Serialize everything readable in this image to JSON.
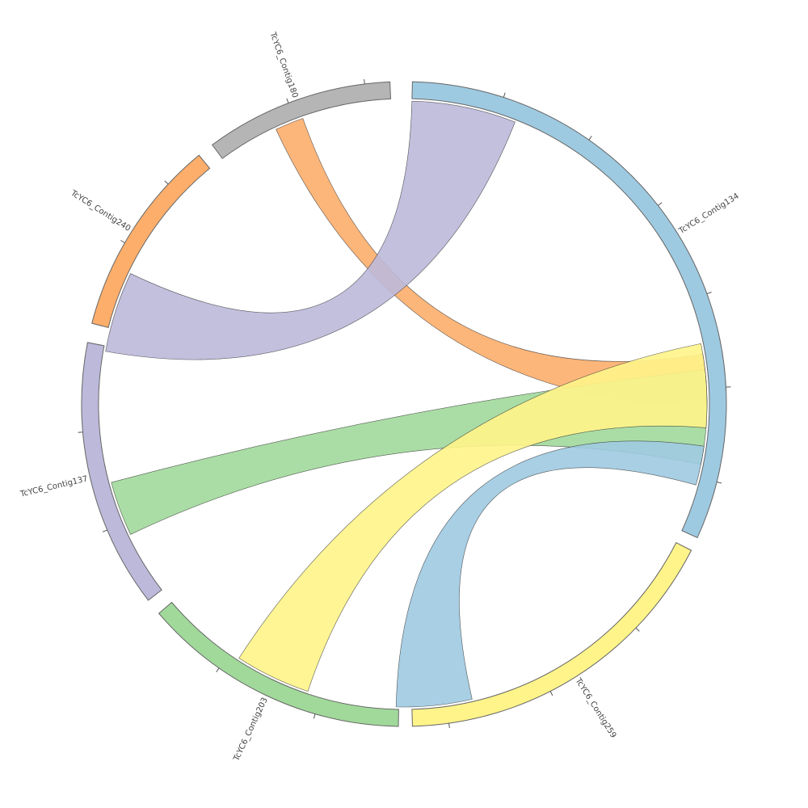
{
  "diagram": {
    "type": "chord",
    "segments": [
      {
        "id": "contig134",
        "label": "TcYC6_Contig134",
        "color": "#9ecae1"
      },
      {
        "id": "contig259",
        "label": "TcYC6_Contig259",
        "color": "#fff48a"
      },
      {
        "id": "contig203",
        "label": "TcYC6_Contig203",
        "color": "#a1d99b"
      },
      {
        "id": "contig137",
        "label": "TcYC6_Contig137",
        "color": "#bcb9da"
      },
      {
        "id": "contig240",
        "label": "TcYC6_Contig240",
        "color": "#fdae6b"
      },
      {
        "id": "contig180",
        "label": "TcYC6_Contig180",
        "color": "#b5b5b5"
      }
    ],
    "links": [
      {
        "from": "contig180",
        "to": "contig134",
        "color": "#fdae6b"
      },
      {
        "from": "contig240",
        "to": "contig134",
        "color": "#bcb9da"
      },
      {
        "from": "contig137",
        "to": "contig134",
        "color": "#a1d99b"
      },
      {
        "from": "contig203",
        "to": "contig134",
        "color": "#fff48a"
      },
      {
        "from": "contig259",
        "to": "contig134",
        "color": "#9ecae1"
      }
    ]
  }
}
